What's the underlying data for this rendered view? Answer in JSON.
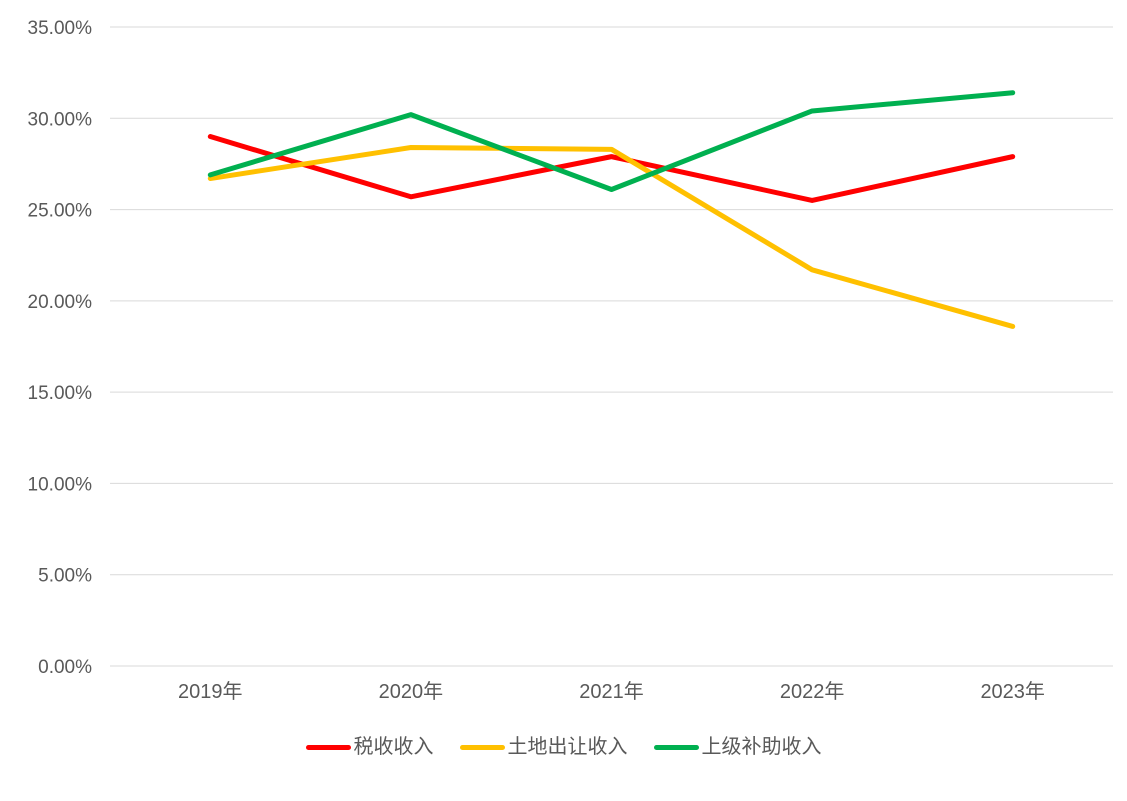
{
  "background_color": "#FFFFFF",
  "axis": {
    "text_color": "#595959",
    "gridline_color": "#D9D9D9"
  },
  "chart_data": {
    "type": "line",
    "title": "",
    "xlabel": "",
    "ylabel": "",
    "categories": [
      "2019年",
      "2020年",
      "2021年",
      "2022年",
      "2023年"
    ],
    "series": [
      {
        "name": "税收收入",
        "color": "#FF0000",
        "values": [
          29.0,
          25.7,
          27.9,
          25.5,
          27.9
        ]
      },
      {
        "name": "土地出让收入",
        "color": "#FFC000",
        "values": [
          26.7,
          28.4,
          28.3,
          21.7,
          18.6
        ]
      },
      {
        "name": "上级补助收入",
        "color": "#00B050",
        "values": [
          26.9,
          30.2,
          26.1,
          30.4,
          31.4
        ]
      }
    ],
    "ylim": [
      0,
      35
    ],
    "ytick_step": 5,
    "ytick_labels": [
      "0.00%",
      "5.00%",
      "10.00%",
      "15.00%",
      "20.00%",
      "25.00%",
      "30.00%",
      "35.00%"
    ],
    "grid": "horizontal-only",
    "legend_position": "bottom-center"
  }
}
